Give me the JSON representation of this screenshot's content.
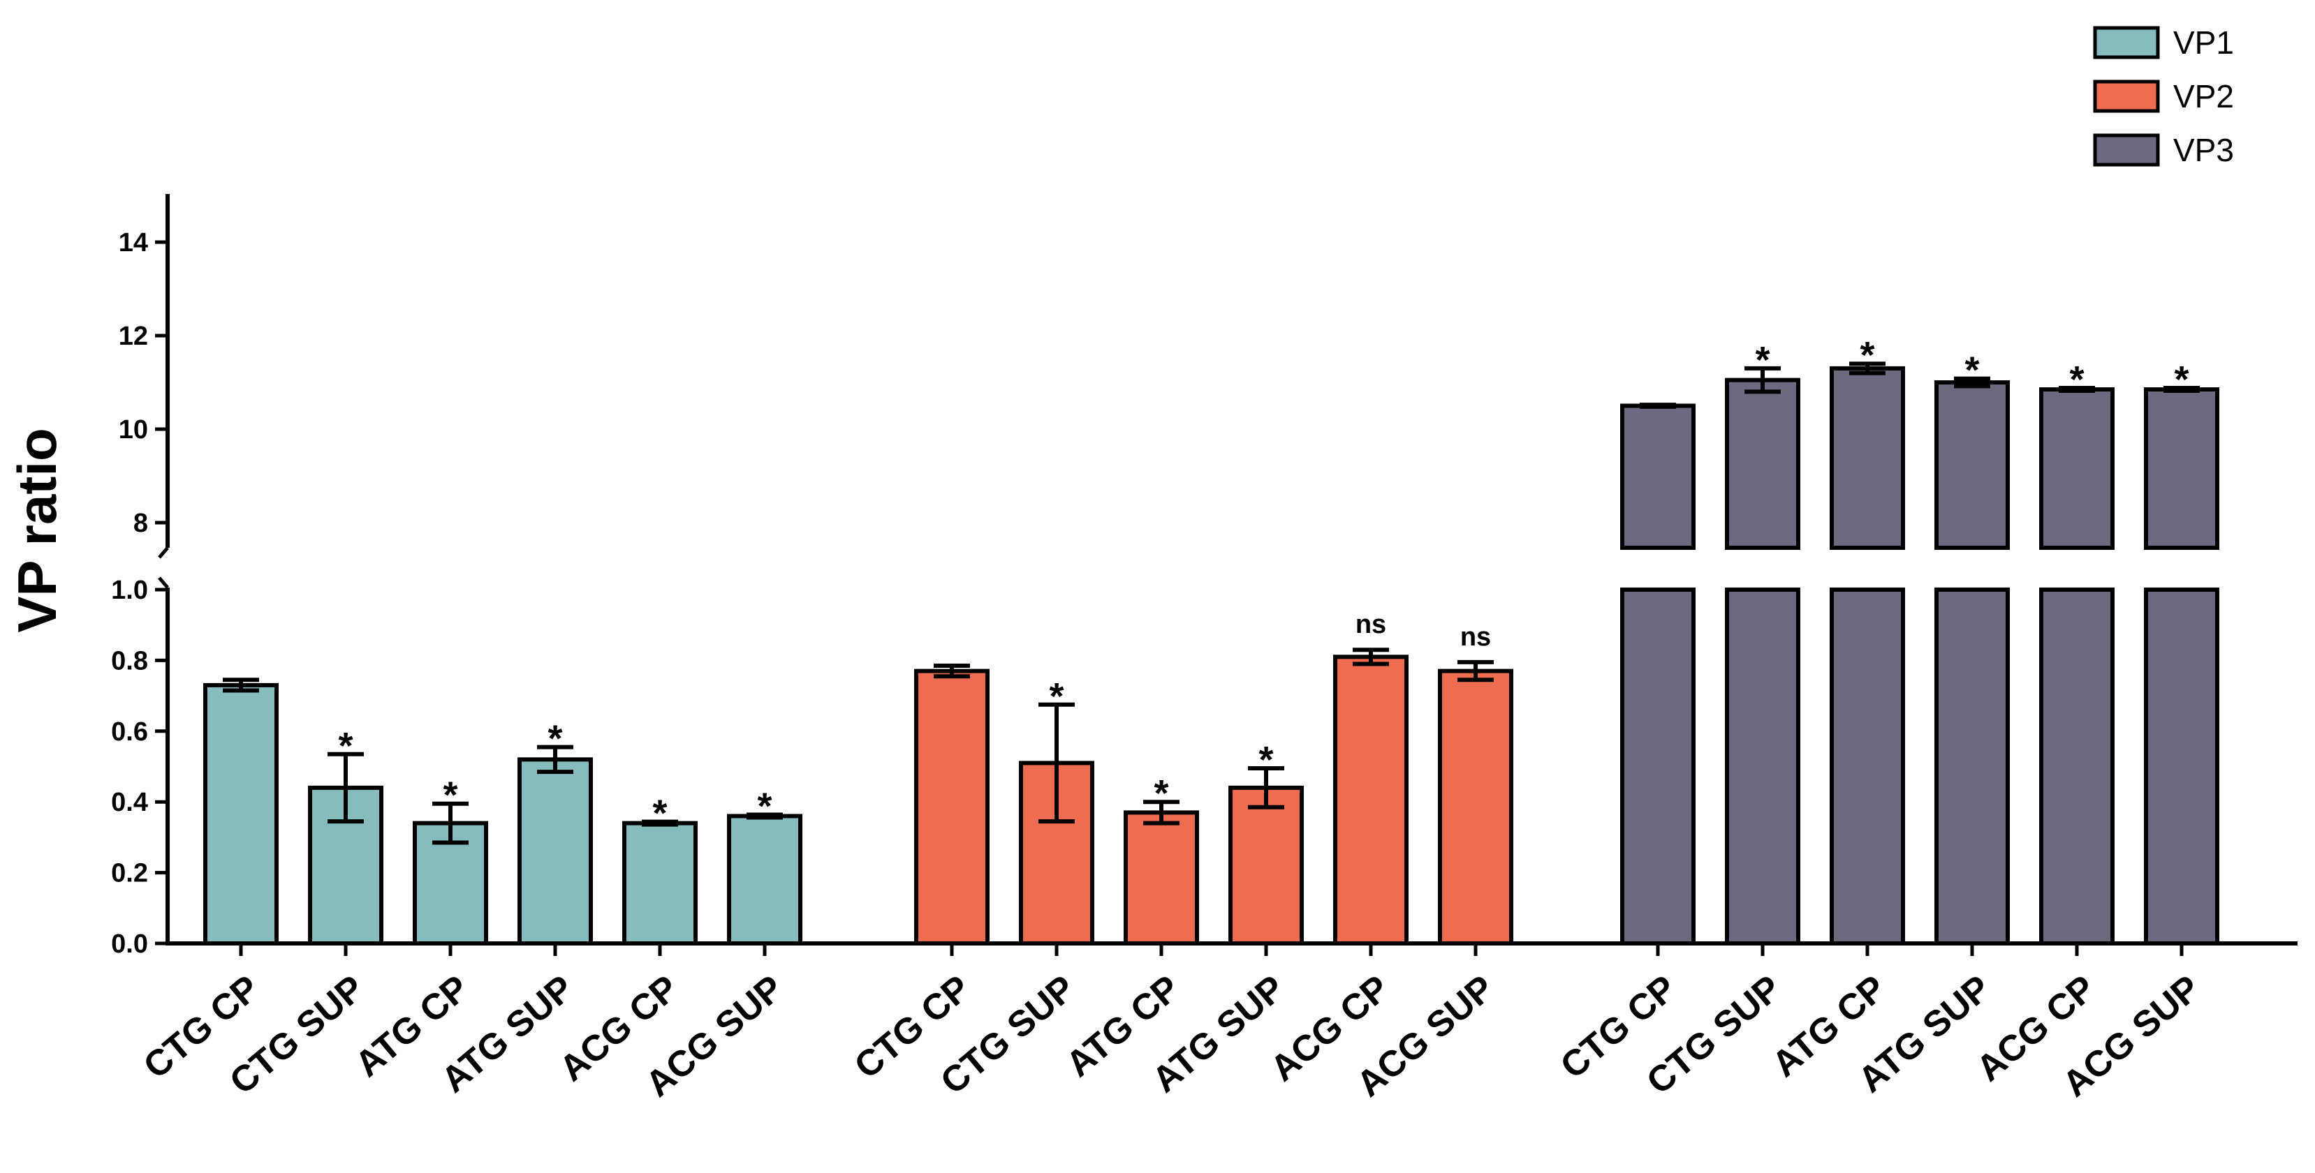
{
  "chart_data": {
    "type": "bar",
    "ylabel": "VP ratio",
    "y_axis_break": true,
    "lower_ylim": [
      0.0,
      1.0
    ],
    "upper_ylim": [
      7.5,
      15
    ],
    "lower_ticks": [
      "0.0",
      "0.2",
      "0.4",
      "0.6",
      "0.8",
      "1.0"
    ],
    "upper_ticks": [
      "8",
      "10",
      "12",
      "14"
    ],
    "legend_position": "top-right",
    "groups": [
      {
        "name": "VP1",
        "color": "#86BCBD",
        "categories": [
          "CTG CP",
          "CTG SUP",
          "ATG CP",
          "ATG SUP",
          "ACG CP",
          "ACG SUP"
        ],
        "values": [
          0.73,
          0.44,
          0.34,
          0.52,
          0.34,
          0.36
        ],
        "errors": [
          0.015,
          0.095,
          0.055,
          0.035,
          0.004,
          0.004
        ],
        "significance": [
          "",
          "*",
          "*",
          "*",
          "*",
          "*"
        ]
      },
      {
        "name": "VP2",
        "color": "#EE6C50",
        "categories": [
          "CTG CP",
          "CTG SUP",
          "ATG CP",
          "ATG SUP",
          "ACG CP",
          "ACG SUP"
        ],
        "values": [
          0.77,
          0.51,
          0.37,
          0.44,
          0.81,
          0.77
        ],
        "errors": [
          0.015,
          0.165,
          0.03,
          0.055,
          0.02,
          0.025
        ],
        "significance": [
          "",
          "*",
          "*",
          "*",
          "ns",
          "ns"
        ]
      },
      {
        "name": "VP3",
        "color": "#6C6A80",
        "categories": [
          "CTG CP",
          "CTG SUP",
          "ATG CP",
          "ATG SUP",
          "ACG CP",
          "ACG SUP"
        ],
        "values": [
          10.5,
          11.05,
          11.3,
          11.0,
          10.85,
          10.85
        ],
        "errors": [
          0.02,
          0.25,
          0.1,
          0.08,
          0.03,
          0.03
        ],
        "significance": [
          "",
          "*",
          "*",
          "*",
          "*",
          "*"
        ]
      }
    ]
  }
}
